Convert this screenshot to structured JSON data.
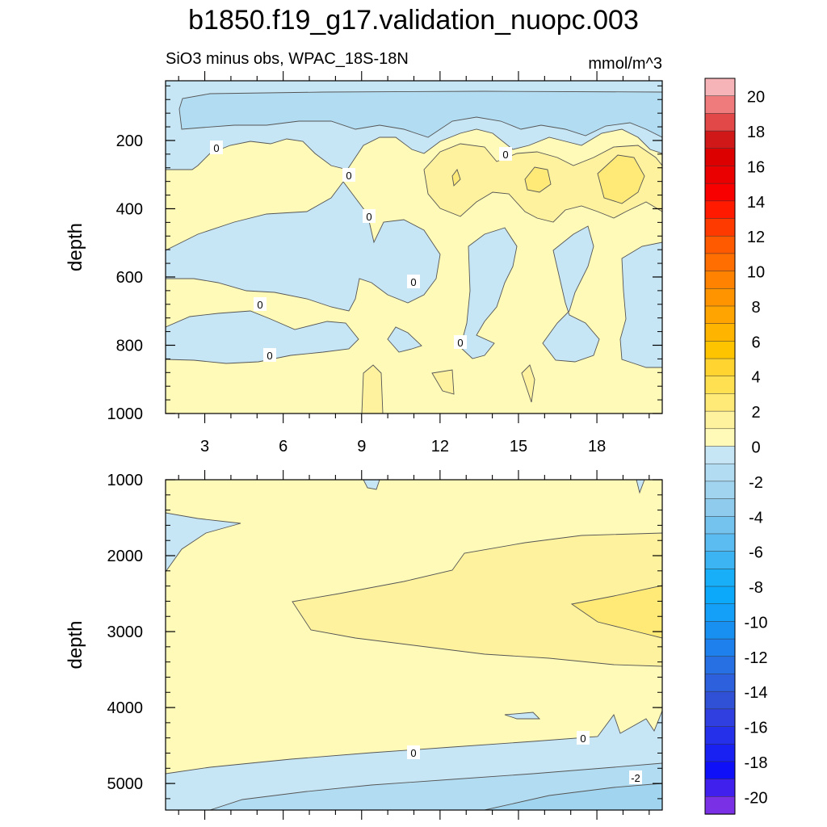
{
  "title": "b1850.f19_g17.validation_nuopc.003",
  "chart_data": [
    {
      "type": "heatmap",
      "panel": "upper",
      "subtitle_left": "SiO3 minus obs, WPAC_18S-18N",
      "subtitle_right": "mmol/m^3",
      "ylabel": "depth",
      "xlabel": "",
      "xlim": [
        1.5,
        20.5
      ],
      "ylim": [
        1000,
        25
      ],
      "x_ticks": [
        "3",
        "6",
        "9",
        "12",
        "15",
        "18"
      ],
      "y_ticks": [
        "200",
        "400",
        "600",
        "800",
        "1000"
      ],
      "contour_labels": [
        "0",
        "0",
        "0",
        "0",
        "0",
        "0",
        "0",
        "0",
        "0"
      ]
    },
    {
      "type": "heatmap",
      "panel": "lower",
      "ylabel": "depth",
      "xlim": [
        1.5,
        20.5
      ],
      "ylim": [
        5350,
        1000
      ],
      "y_ticks": [
        "1000",
        "2000",
        "3000",
        "4000",
        "5000"
      ],
      "contour_labels": [
        "0",
        "0",
        "-2"
      ]
    }
  ],
  "colorbar": {
    "labels": [
      "20",
      "18",
      "16",
      "14",
      "12",
      "10",
      "8",
      "6",
      "4",
      "2",
      "0",
      "-2",
      "-4",
      "-6",
      "-8",
      "-10",
      "-12",
      "-14",
      "-16",
      "-18",
      "-20"
    ],
    "colors": [
      "#f7b4b8",
      "#f07b7d",
      "#e24848",
      "#d01818",
      "#dc0000",
      "#ea0000",
      "#f80000",
      "#ff1a00",
      "#ff3a00",
      "#ff5a00",
      "#ff6e00",
      "#ff8200",
      "#ff9400",
      "#ffa400",
      "#ffb400",
      "#ffc400",
      "#ffd430",
      "#ffe050",
      "#ffea78",
      "#fff29e",
      "#fffab8",
      "#c6e6f6",
      "#b2dcf2",
      "#a0d4ef",
      "#8ecbec",
      "#74c2ee",
      "#5abcf0",
      "#3cb4f4",
      "#18aef8",
      "#0ca8fa",
      "#14a0f8",
      "#1890f2",
      "#1e80ec",
      "#2670e4",
      "#2c60dc",
      "#3050d6",
      "#3040e0",
      "#2430ea",
      "#1820f2",
      "#1010f8",
      "#4020ec",
      "#7a30e4"
    ]
  }
}
